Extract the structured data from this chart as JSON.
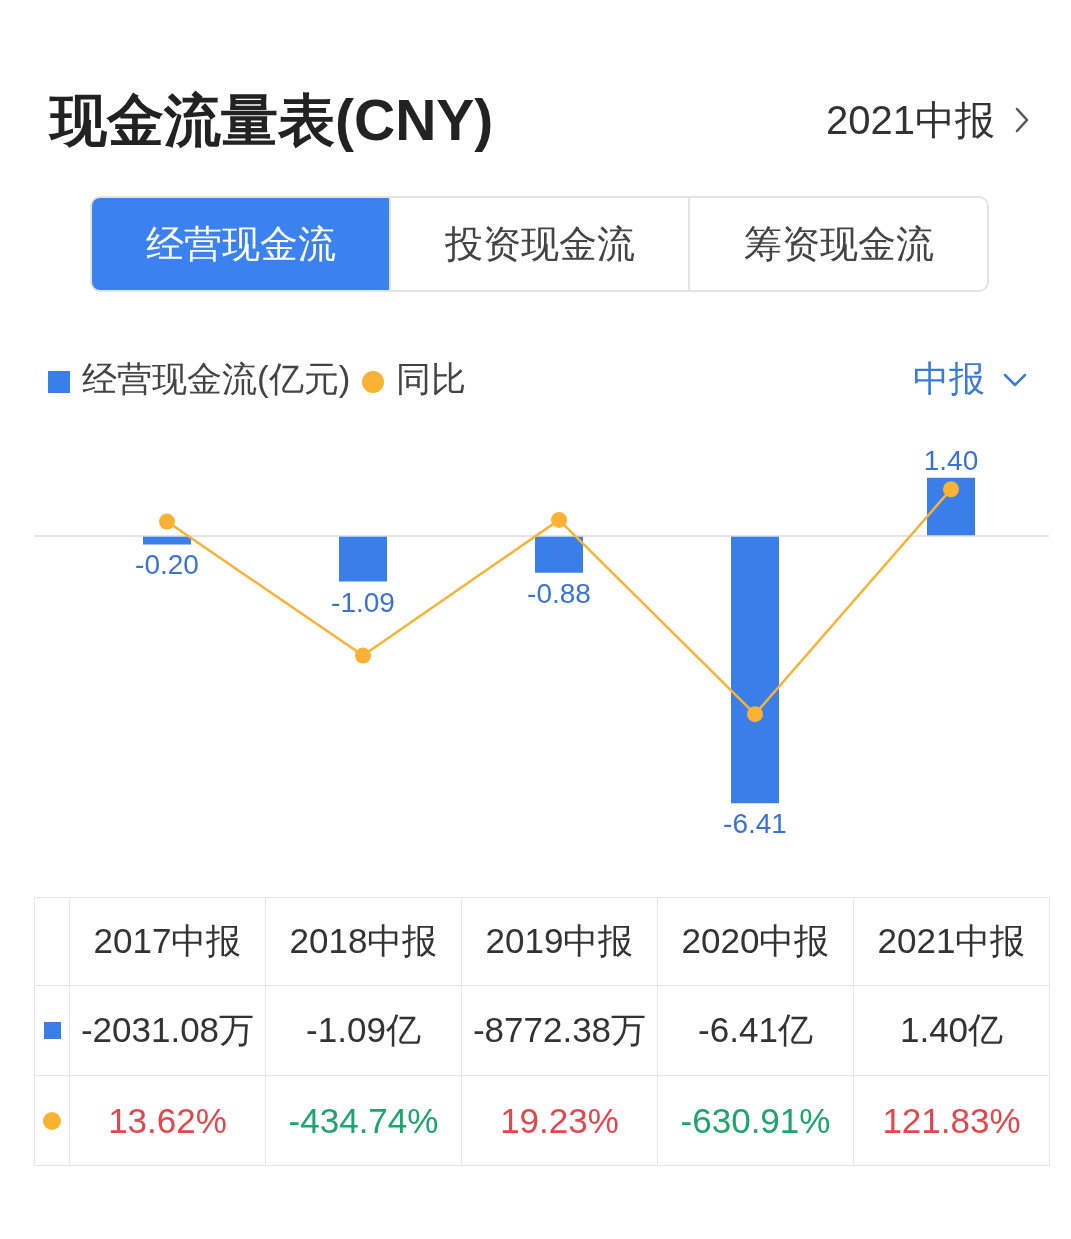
{
  "chart_data": {
    "type": "bar",
    "title": "现金流量表(CNY)",
    "categories": [
      "2017中报",
      "2018中报",
      "2019中报",
      "2020中报",
      "2021中报"
    ],
    "series": [
      {
        "name": "经营现金流(亿元)",
        "color": "#3a7fe9",
        "values": [
          -0.2,
          -1.09,
          -0.88,
          -6.41,
          1.4
        ],
        "value_labels": [
          "-0.20",
          "-1.09",
          "-0.88",
          "-6.41",
          "1.40"
        ]
      },
      {
        "name": "同比",
        "type": "line",
        "axis": "y2",
        "color": "#f9b233",
        "values": [
          13.62,
          -434.74,
          19.23,
          -630.91,
          121.83
        ],
        "value_labels": [
          "13.62%",
          "-434.74%",
          "19.23%",
          "-630.91%",
          "121.83%"
        ]
      }
    ],
    "ref_lines": [
      {
        "axis": "y",
        "value": 0,
        "color": "#dcdcdc"
      }
    ],
    "legend": "top left",
    "marker": "circle",
    "line_style": "solid",
    "tick_labels": false,
    "annotations": [
      "2021中报",
      "经营现金流",
      "投资现金流",
      "筹资现金流",
      "中报",
      "-2031.08万",
      "-1.09亿",
      "-8772.38万",
      "-6.41亿",
      "1.40亿"
    ]
  }
}
